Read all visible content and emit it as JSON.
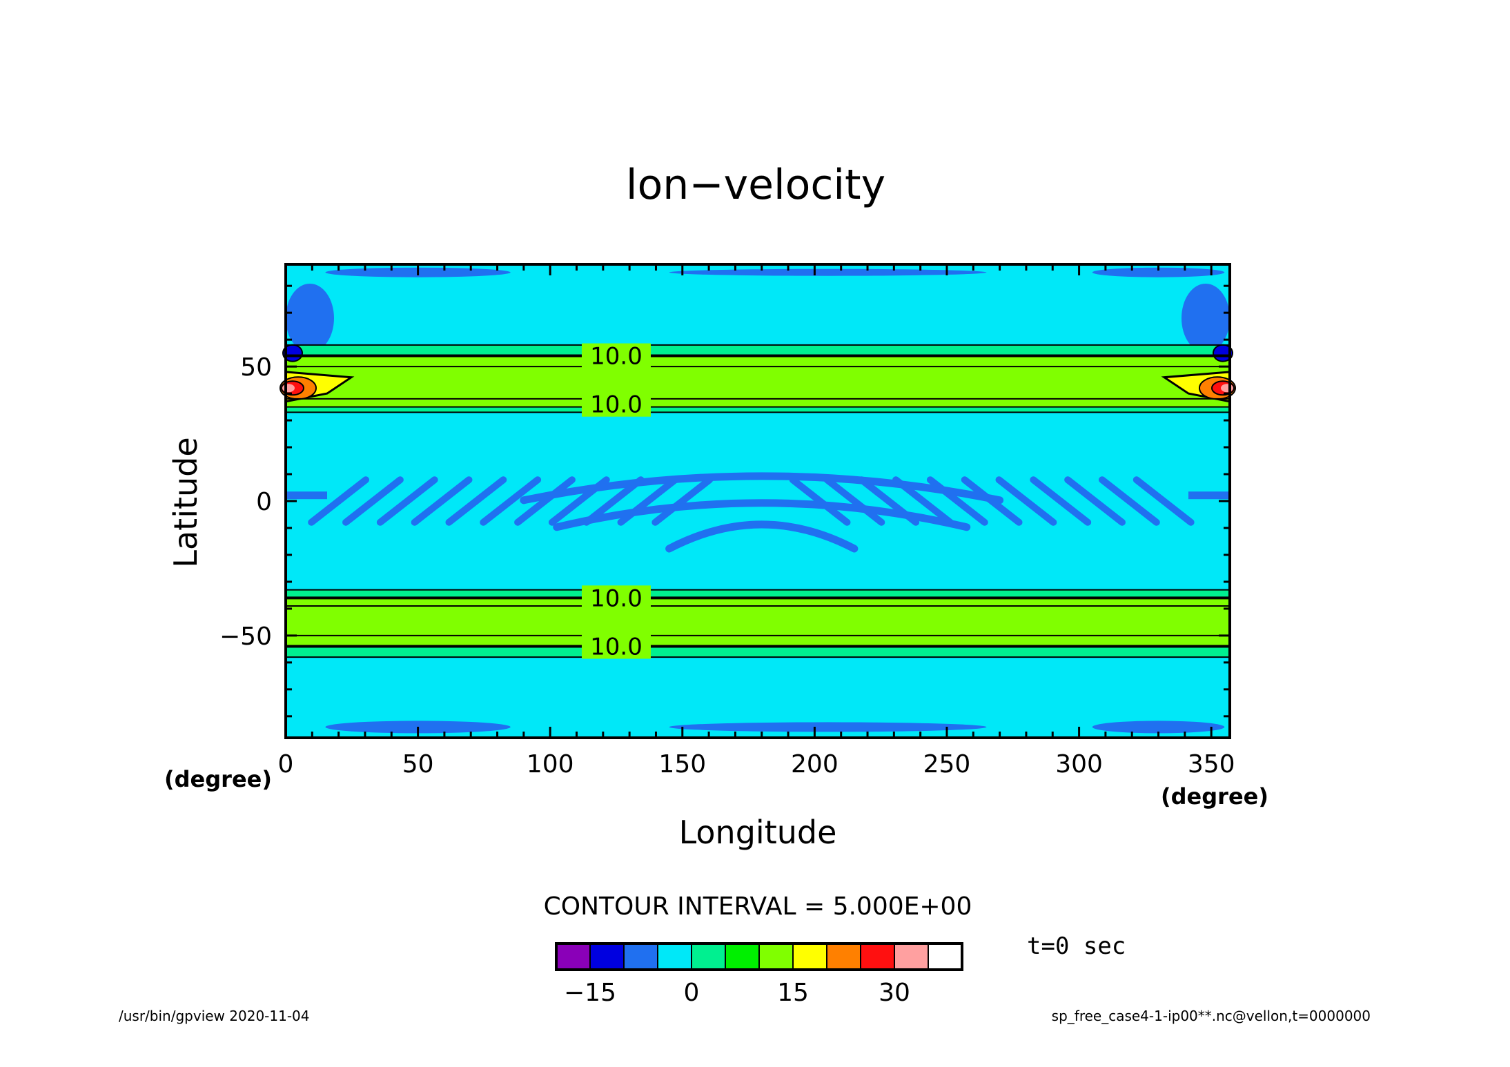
{
  "chart_data": {
    "type": "heatmap",
    "title": "lon−velocity",
    "xlabel": "Longitude",
    "ylabel": "Latitude",
    "x_unit": "(degree)",
    "y_unit": "(degree)",
    "xlim": [
      0,
      357
    ],
    "ylim": [
      -88,
      88
    ],
    "x_ticks": [
      0,
      50,
      100,
      150,
      200,
      250,
      300,
      350
    ],
    "x_tick_labels": [
      "0",
      "50",
      "100",
      "150",
      "200",
      "250",
      "300",
      "350"
    ],
    "y_ticks": [
      -50,
      0,
      50
    ],
    "y_tick_labels": [
      "−50",
      "0",
      "50"
    ],
    "contour_interval_text": "CONTOUR INTERVAL = 5.000E+00",
    "contour_labels": [
      {
        "lat": 54,
        "lon": 125,
        "text": "10.0"
      },
      {
        "lat": 36,
        "lon": 125,
        "text": "10.0"
      },
      {
        "lat": -36,
        "lon": 125,
        "text": "10.0"
      },
      {
        "lat": -54,
        "lon": 125,
        "text": "10.0"
      }
    ],
    "bands": [
      {
        "lat_min": 33,
        "lat_max": 58,
        "value": 7.5
      },
      {
        "lat_min": 35,
        "lat_max": 54,
        "value": 12.5
      },
      {
        "lat_min": 38,
        "lat_max": 50,
        "value": 17.5
      },
      {
        "lat_min": -58,
        "lat_max": -33,
        "value": 7.5
      },
      {
        "lat_min": -54,
        "lat_max": -36,
        "value": 12.5
      },
      {
        "lat_min": -50,
        "lat_max": -39,
        "value": 17.5
      }
    ],
    "colorbar": {
      "levels": [
        -20,
        -15,
        -10,
        -5,
        0,
        5,
        10,
        15,
        20,
        25,
        30,
        35,
        40
      ],
      "colors": [
        "#8a00b8",
        "#0000e0",
        "#2070f0",
        "#00e8f8",
        "#00f090",
        "#00f000",
        "#80ff00",
        "#ffff00",
        "#ff8000",
        "#ff1010",
        "#ffa0a0"
      ],
      "tick_labels": [
        "−15",
        "0",
        "15",
        "30"
      ],
      "tick_values": [
        -15,
        0,
        15,
        30
      ]
    },
    "time_label": "t=0 sec"
  },
  "footer": {
    "left": "/usr/bin/gpview   2020-11-04",
    "right": "sp_free_case4-1-ip00**.nc@vellon,t=0000000"
  },
  "colors": {
    "background_field": "#00e8f8",
    "negative_patch": "#2070f0",
    "band_outer": "#00f090",
    "band_inner": "#80ff00",
    "frame": "#000000"
  }
}
